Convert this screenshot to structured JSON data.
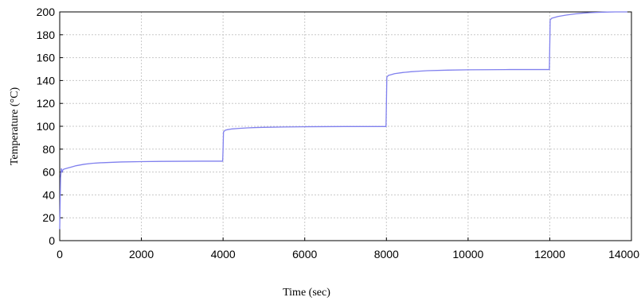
{
  "chart_data": {
    "type": "line",
    "title": "",
    "xlabel": "Time (sec)",
    "ylabel": "Temperature (°C)",
    "xlim": [
      0,
      14000
    ],
    "ylim": [
      0,
      200
    ],
    "x_ticks": [
      0,
      2000,
      4000,
      6000,
      8000,
      10000,
      12000,
      14000
    ],
    "y_ticks": [
      0,
      20,
      40,
      60,
      80,
      100,
      120,
      140,
      160,
      180,
      200
    ],
    "grid": true,
    "legend": "none",
    "colors": {
      "line": "#8080ee",
      "grid": "#c8c8c8",
      "axis": "#000000"
    },
    "series": [
      {
        "x": [
          0,
          20,
          40,
          60,
          80,
          100,
          150,
          200,
          300,
          400,
          600,
          800,
          1000,
          1500,
          2000,
          2500,
          3000,
          3500,
          3990,
          4000,
          4010,
          4050,
          4100,
          4200,
          4400,
          4600,
          4800,
          5000,
          5500,
          6000,
          6500,
          7000,
          7500,
          7990,
          8000,
          8010,
          8050,
          8100,
          8200,
          8400,
          8600,
          8800,
          9000,
          9500,
          10000,
          10500,
          11000,
          11500,
          11990,
          12000,
          12010,
          12050,
          12100,
          12200,
          12400,
          12600,
          12800,
          13000,
          13300,
          13600,
          13900
        ],
        "y": [
          10,
          55,
          63,
          60,
          62,
          62.5,
          63,
          63.5,
          64.5,
          65.5,
          66.8,
          67.6,
          68.1,
          68.8,
          69.1,
          69.3,
          69.4,
          69.5,
          69.5,
          80,
          95,
          96.5,
          97,
          97.6,
          98.2,
          98.6,
          98.9,
          99.1,
          99.4,
          99.6,
          99.7,
          99.8,
          99.8,
          99.8,
          120,
          143,
          144.5,
          145,
          146,
          147,
          147.7,
          148.2,
          148.6,
          149.1,
          149.4,
          149.5,
          149.6,
          149.6,
          149.6,
          170,
          193,
          194.5,
          195,
          196,
          197.2,
          198.2,
          198.9,
          199.4,
          199.8,
          200,
          200
        ]
      }
    ]
  }
}
